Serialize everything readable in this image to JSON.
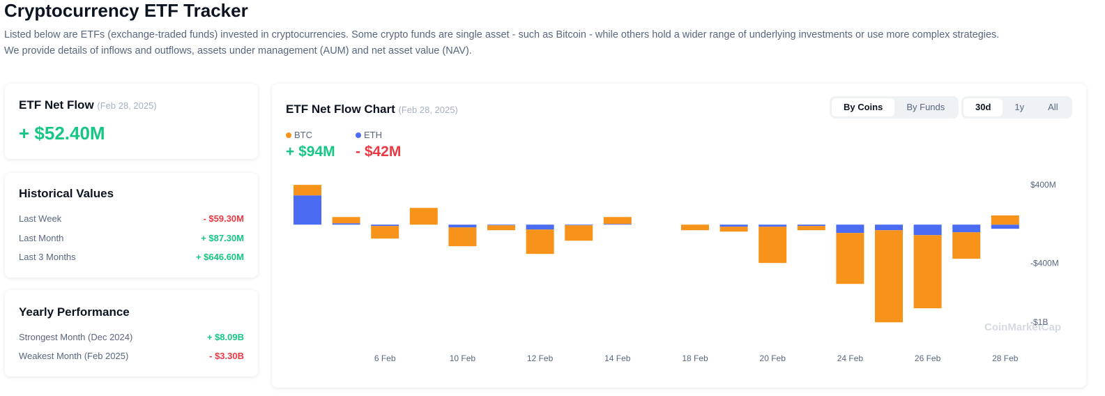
{
  "header": {
    "title": "Cryptocurrency ETF Tracker",
    "description": [
      "Listed below are ETFs (exchange-traded funds) invested in cryptocurrencies. Some crypto funds are single asset - such as Bitcoin - while others hold a wider range of underlying investments or use more complex strategies.",
      "We provide details of inflows and outflows, assets under management (AUM) and net asset value (NAV)."
    ]
  },
  "net_flow": {
    "title": "ETF Net Flow",
    "date": "(Feb 28, 2025)",
    "value": "+ $52.40M"
  },
  "historical": {
    "title": "Historical Values",
    "rows": [
      {
        "label": "Last Week",
        "value": "- $59.30M"
      },
      {
        "label": "Last Month",
        "value": "+ $87.30M"
      },
      {
        "label": "Last 3 Months",
        "value": "+ $646.60M"
      }
    ]
  },
  "yearly": {
    "title": "Yearly Performance",
    "rows": [
      {
        "label": "Strongest Month",
        "period": "(Dec 2024)",
        "value": "+ $8.09B"
      },
      {
        "label": "Weakest Month",
        "period": "(Feb 2025)",
        "value": "- $3.30B"
      }
    ]
  },
  "chart_panel": {
    "title": "ETF Net Flow Chart",
    "date": "(Feb 28, 2025)",
    "views": [
      "By Coins",
      "By Funds"
    ],
    "ranges": [
      "30d",
      "1y",
      "All"
    ],
    "watermark": "CoinMarketCap"
  },
  "chart_data": {
    "type": "stacked_bar",
    "categories": [
      null,
      null,
      "6 Feb",
      null,
      "10 Feb",
      null,
      "12 Feb",
      null,
      "14 Feb",
      null,
      "18 Feb",
      null,
      "20 Feb",
      null,
      "24 Feb",
      null,
      "26 Feb",
      null,
      "28 Feb"
    ],
    "series": [
      {
        "name": "ETH",
        "color": "#4a6cf2",
        "total": "- $42M",
        "values": [
          299,
          14,
          -14,
          0,
          -28,
          -7,
          -50,
          -7,
          7,
          0,
          0,
          -21,
          -21,
          -14,
          -85,
          -57,
          -107,
          -78,
          -42
        ]
      },
      {
        "name": "BTC",
        "color": "#f7931a",
        "total": "+ $94M",
        "values": [
          107,
          64,
          -128,
          171,
          -192,
          -50,
          -249,
          -157,
          71,
          0,
          -57,
          -50,
          -370,
          -43,
          -520,
          -940,
          -747,
          -270,
          94
        ]
      }
    ],
    "ylim": [
      -1050,
      450
    ],
    "yticks": [
      {
        "value": 400,
        "label": "$400M"
      },
      {
        "value": -400,
        "label": "-$400M"
      },
      {
        "value": -1000,
        "label": "-$1B"
      }
    ],
    "grid": false
  }
}
